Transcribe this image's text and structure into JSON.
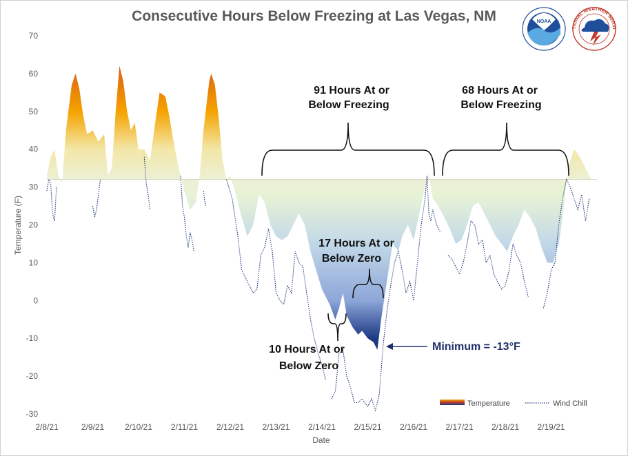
{
  "chart_data": {
    "type": "area",
    "title": "Consecutive Hours Below Freezing at Las Vegas, NM",
    "xlabel": "Date",
    "ylabel": "Temperature (F)",
    "ylim": [
      -30,
      70
    ],
    "yticks": [
      70,
      60,
      50,
      40,
      30,
      20,
      10,
      0,
      -10,
      -20,
      -30
    ],
    "xticks": [
      "2/8/21",
      "2/9/21",
      "2/10/21",
      "2/11/21",
      "2/12/21",
      "2/13/21",
      "2/14/21",
      "2/15/21",
      "2/16/21",
      "2/17/21",
      "2/18/21",
      "2/19/21"
    ],
    "freezing_line": 32,
    "series": [
      {
        "name": "Temperature",
        "points": [
          [
            "2/8/21 00:00",
            33
          ],
          [
            "2/8/21 02:00",
            38
          ],
          [
            "2/8/21 04:00",
            40
          ],
          [
            "2/8/21 06:00",
            33
          ],
          [
            "2/8/21 08:00",
            31
          ],
          [
            "2/8/21 10:00",
            45
          ],
          [
            "2/8/21 13:00",
            57
          ],
          [
            "2/8/21 15:00",
            60
          ],
          [
            "2/8/21 17:00",
            56
          ],
          [
            "2/8/21 19:00",
            49
          ],
          [
            "2/8/21 21:00",
            44
          ],
          [
            "2/9/21 00:00",
            45
          ],
          [
            "2/9/21 03:00",
            42
          ],
          [
            "2/9/21 06:00",
            44
          ],
          [
            "2/9/21 08:00",
            33
          ],
          [
            "2/9/21 10:00",
            35
          ],
          [
            "2/9/21 12:00",
            50
          ],
          [
            "2/9/21 14:00",
            62
          ],
          [
            "2/9/21 16:00",
            58
          ],
          [
            "2/9/21 18:00",
            50
          ],
          [
            "2/9/21 20:00",
            45
          ],
          [
            "2/9/21 22:00",
            47
          ],
          [
            "2/10/21 00:00",
            40
          ],
          [
            "2/10/21 03:00",
            40
          ],
          [
            "2/10/21 06:00",
            37
          ],
          [
            "2/10/21 09:00",
            48
          ],
          [
            "2/10/21 11:00",
            55
          ],
          [
            "2/10/21 14:00",
            54
          ],
          [
            "2/10/21 16:00",
            49
          ],
          [
            "2/10/21 18:00",
            43
          ],
          [
            "2/10/21 21:00",
            35
          ],
          [
            "2/11/21 00:00",
            29
          ],
          [
            "2/11/21 03:00",
            24
          ],
          [
            "2/11/21 06:00",
            26
          ],
          [
            "2/11/21 08:00",
            33
          ],
          [
            "2/11/21 10:00",
            45
          ],
          [
            "2/11/21 13:00",
            58
          ],
          [
            "2/11/21 14:00",
            60
          ],
          [
            "2/11/21 16:00",
            57
          ],
          [
            "2/11/21 18:00",
            48
          ],
          [
            "2/11/21 20:00",
            37
          ],
          [
            "2/11/21 22:00",
            32
          ],
          [
            "2/12/21 00:00",
            33
          ],
          [
            "2/12/21 03:00",
            28
          ],
          [
            "2/12/21 06:00",
            22
          ],
          [
            "2/12/21 09:00",
            17
          ],
          [
            "2/12/21 12:00",
            20
          ],
          [
            "2/12/21 15:00",
            28
          ],
          [
            "2/12/21 18:00",
            26
          ],
          [
            "2/12/21 21:00",
            20
          ],
          [
            "2/13/21 00:00",
            17
          ],
          [
            "2/13/21 03:00",
            16
          ],
          [
            "2/13/21 06:00",
            17
          ],
          [
            "2/13/21 09:00",
            20
          ],
          [
            "2/13/21 12:00",
            23
          ],
          [
            "2/13/21 15:00",
            20
          ],
          [
            "2/13/21 18:00",
            13
          ],
          [
            "2/13/21 21:00",
            8
          ],
          [
            "2/14/21 00:00",
            3
          ],
          [
            "2/14/21 04:00",
            -1
          ],
          [
            "2/14/21 07:00",
            -5
          ],
          [
            "2/14/21 09:00",
            -2
          ],
          [
            "2/14/21 11:00",
            2
          ],
          [
            "2/14/21 13:00",
            -4
          ],
          [
            "2/14/21 16:00",
            -7
          ],
          [
            "2/14/21 19:00",
            -9
          ],
          [
            "2/14/21 21:00",
            -8
          ],
          [
            "2/15/21 00:00",
            -10
          ],
          [
            "2/15/21 03:00",
            -11
          ],
          [
            "2/15/21 05:00",
            -13
          ],
          [
            "2/15/21 07:00",
            -5
          ],
          [
            "2/15/21 10:00",
            5
          ],
          [
            "2/15/21 13:00",
            15
          ],
          [
            "2/15/21 16:00",
            13
          ],
          [
            "2/15/21 18:00",
            17
          ],
          [
            "2/15/21 21:00",
            20
          ],
          [
            "2/16/21 00:00",
            16
          ],
          [
            "2/16/21 03:00",
            23
          ],
          [
            "2/16/21 06:00",
            30
          ],
          [
            "2/16/21 08:00",
            33
          ],
          [
            "2/16/21 10:00",
            27
          ],
          [
            "2/16/21 13:00",
            25
          ],
          [
            "2/16/21 16:00",
            22
          ],
          [
            "2/16/21 19:00",
            19
          ],
          [
            "2/16/21 22:00",
            15
          ],
          [
            "2/17/21 01:00",
            16
          ],
          [
            "2/17/21 04:00",
            20
          ],
          [
            "2/17/21 07:00",
            25
          ],
          [
            "2/17/21 10:00",
            26
          ],
          [
            "2/17/21 13:00",
            23
          ],
          [
            "2/17/21 16:00",
            20
          ],
          [
            "2/17/21 19:00",
            17
          ],
          [
            "2/17/21 22:00",
            15
          ],
          [
            "2/18/21 01:00",
            13
          ],
          [
            "2/18/21 04:00",
            17
          ],
          [
            "2/18/21 07:00",
            20
          ],
          [
            "2/18/21 10:00",
            24
          ],
          [
            "2/18/21 13:00",
            22
          ],
          [
            "2/18/21 16:00",
            19
          ],
          [
            "2/18/21 19:00",
            14
          ],
          [
            "2/18/21 22:00",
            10
          ],
          [
            "2/19/21 01:00",
            10
          ],
          [
            "2/19/21 04:00",
            15
          ],
          [
            "2/19/21 06:00",
            22
          ],
          [
            "2/19/21 08:00",
            31
          ],
          [
            "2/19/21 10:00",
            37
          ],
          [
            "2/19/21 12:00",
            40
          ],
          [
            "2/19/21 15:00",
            38
          ],
          [
            "2/19/21 18:00",
            35
          ],
          [
            "2/19/21 21:00",
            32
          ]
        ]
      },
      {
        "name": "Wind Chill",
        "points": [
          [
            "2/8/21 00:00",
            29
          ],
          [
            "2/8/21 01:00",
            32
          ],
          [
            "2/8/21 02:00",
            31
          ],
          [
            "2/8/21 03:00",
            23
          ],
          [
            "2/8/21 04:00",
            21
          ],
          [
            "2/8/21 05:00",
            30
          ],
          null,
          [
            "2/9/21 00:00",
            25
          ],
          [
            "2/9/21 01:00",
            22
          ],
          [
            "2/9/21 02:00",
            24
          ],
          [
            "2/9/21 03:00",
            28
          ],
          [
            "2/9/21 04:00",
            32
          ],
          null,
          [
            "2/10/21 03:00",
            38
          ],
          [
            "2/10/21 04:00",
            31
          ],
          [
            "2/10/21 05:00",
            28
          ],
          [
            "2/10/21 06:00",
            24
          ],
          null,
          [
            "2/10/21 22:00",
            33
          ],
          [
            "2/10/21 23:00",
            25
          ],
          [
            "2/11/21 00:00",
            22
          ],
          [
            "2/11/21 01:00",
            17
          ],
          [
            "2/11/21 02:00",
            14
          ],
          [
            "2/11/21 03:00",
            18
          ],
          [
            "2/11/21 04:00",
            16
          ],
          [
            "2/11/21 05:00",
            13
          ],
          null,
          [
            "2/11/21 10:00",
            29
          ],
          [
            "2/11/21 11:00",
            25
          ],
          null,
          [
            "2/11/21 22:00",
            32
          ],
          [
            "2/12/21 01:00",
            27
          ],
          [
            "2/12/21 04:00",
            17
          ],
          [
            "2/12/21 06:00",
            8
          ],
          [
            "2/12/21 08:00",
            6
          ],
          [
            "2/12/21 10:00",
            4
          ],
          [
            "2/12/21 12:00",
            2
          ],
          [
            "2/12/21 14:00",
            3
          ],
          [
            "2/12/21 16:00",
            12
          ],
          [
            "2/12/21 18:00",
            14
          ],
          [
            "2/12/21 20:00",
            19
          ],
          [
            "2/12/21 22:00",
            13
          ],
          [
            "2/13/21 00:00",
            2
          ],
          [
            "2/13/21 02:00",
            0
          ],
          [
            "2/13/21 04:00",
            -1
          ],
          [
            "2/13/21 06:00",
            4
          ],
          [
            "2/13/21 08:00",
            2
          ],
          [
            "2/13/21 10:00",
            13
          ],
          [
            "2/13/21 12:00",
            10
          ],
          [
            "2/13/21 14:00",
            9
          ],
          [
            "2/13/21 16:00",
            2
          ],
          [
            "2/13/21 18:00",
            -5
          ],
          [
            "2/13/21 20:00",
            -10
          ],
          [
            "2/13/21 22:00",
            -14
          ],
          [
            "2/14/21 00:00",
            -17
          ],
          [
            "2/14/21 02:00",
            -21
          ],
          null,
          [
            "2/14/21 05:00",
            -26
          ],
          [
            "2/14/21 07:00",
            -24
          ],
          [
            "2/14/21 09:00",
            -14
          ],
          [
            "2/14/21 11:00",
            -13
          ],
          [
            "2/14/21 13:00",
            -20
          ],
          [
            "2/14/21 15:00",
            -23
          ],
          [
            "2/14/21 17:00",
            -27
          ],
          [
            "2/14/21 19:00",
            -27
          ],
          [
            "2/14/21 21:00",
            -26
          ],
          [
            "2/15/21 00:00",
            -28
          ],
          [
            "2/15/21 02:00",
            -26
          ],
          [
            "2/15/21 04:00",
            -29
          ],
          [
            "2/15/21 06:00",
            -25
          ],
          [
            "2/15/21 08:00",
            -12
          ],
          [
            "2/15/21 10:00",
            -3
          ],
          [
            "2/15/21 12:00",
            4
          ],
          [
            "2/15/21 14:00",
            10
          ],
          [
            "2/15/21 16:00",
            13
          ],
          [
            "2/15/21 18:00",
            8
          ],
          [
            "2/15/21 20:00",
            2
          ],
          [
            "2/15/21 22:00",
            5
          ],
          [
            "2/16/21 00:00",
            0
          ],
          [
            "2/16/21 02:00",
            10
          ],
          [
            "2/16/21 04:00",
            20
          ],
          [
            "2/16/21 06:00",
            27
          ],
          [
            "2/16/21 07:00",
            33
          ],
          [
            "2/16/21 08:00",
            23
          ],
          [
            "2/16/21 09:00",
            21
          ],
          [
            "2/16/21 10:00",
            24
          ],
          [
            "2/16/21 12:00",
            20
          ],
          [
            "2/16/21 14:00",
            18
          ],
          null,
          [
            "2/16/21 18:00",
            12
          ],
          [
            "2/16/21 20:00",
            11
          ],
          [
            "2/16/21 22:00",
            9
          ],
          [
            "2/17/21 00:00",
            7
          ],
          [
            "2/17/21 02:00",
            10
          ],
          [
            "2/17/21 04:00",
            15
          ],
          [
            "2/17/21 06:00",
            21
          ],
          [
            "2/17/21 08:00",
            20
          ],
          [
            "2/17/21 10:00",
            15
          ],
          [
            "2/17/21 12:00",
            16
          ],
          [
            "2/17/21 14:00",
            10
          ],
          [
            "2/17/21 16:00",
            12
          ],
          [
            "2/17/21 18:00",
            7
          ],
          [
            "2/17/21 20:00",
            5
          ],
          [
            "2/17/21 22:00",
            3
          ],
          [
            "2/18/21 00:00",
            4
          ],
          [
            "2/18/21 02:00",
            8
          ],
          [
            "2/18/21 04:00",
            15
          ],
          [
            "2/18/21 06:00",
            12
          ],
          [
            "2/18/21 08:00",
            10
          ],
          [
            "2/18/21 10:00",
            5
          ],
          [
            "2/18/21 12:00",
            1
          ],
          null,
          [
            "2/18/21 20:00",
            -2
          ],
          [
            "2/18/21 22:00",
            2
          ],
          [
            "2/19/21 00:00",
            8
          ],
          [
            "2/19/21 02:00",
            10
          ],
          [
            "2/19/21 04:00",
            20
          ],
          [
            "2/19/21 06:00",
            27
          ],
          [
            "2/19/21 08:00",
            32
          ],
          [
            "2/19/21 10:00",
            30
          ],
          [
            "2/19/21 12:00",
            27
          ],
          [
            "2/19/21 14:00",
            24
          ],
          [
            "2/19/21 16:00",
            28
          ],
          [
            "2/19/21 18:00",
            21
          ],
          [
            "2/19/21 20:00",
            27
          ]
        ]
      }
    ],
    "annotations": {
      "hours_91": [
        "91 Hours At or",
        "Below Freezing"
      ],
      "hours_68": [
        "68 Hours At or",
        "Below Freezing"
      ],
      "hours_17": [
        "17 Hours At or",
        "Below Zero"
      ],
      "hours_10": [
        "10 Hours At or",
        "Below Zero"
      ],
      "minimum": "Minimum = -13°F"
    },
    "legend_position": "bottom-right",
    "grid": false
  },
  "colors": {
    "warm_top": "#c0392b",
    "warm_mid": "#f5a300",
    "warm_low": "#eeeed0",
    "cold_top": "#e8f3d6",
    "cold_mid": "#b8cde6",
    "cold_low": "#6f86c4",
    "cold_bottom": "#0b1a52",
    "wind_chill": "#1f3a7a",
    "minimum_text": "#1f2f6b"
  },
  "logos": {
    "noaa_label": "NOAA",
    "nws_label": "NATIONAL WEATHER SERVICE"
  }
}
